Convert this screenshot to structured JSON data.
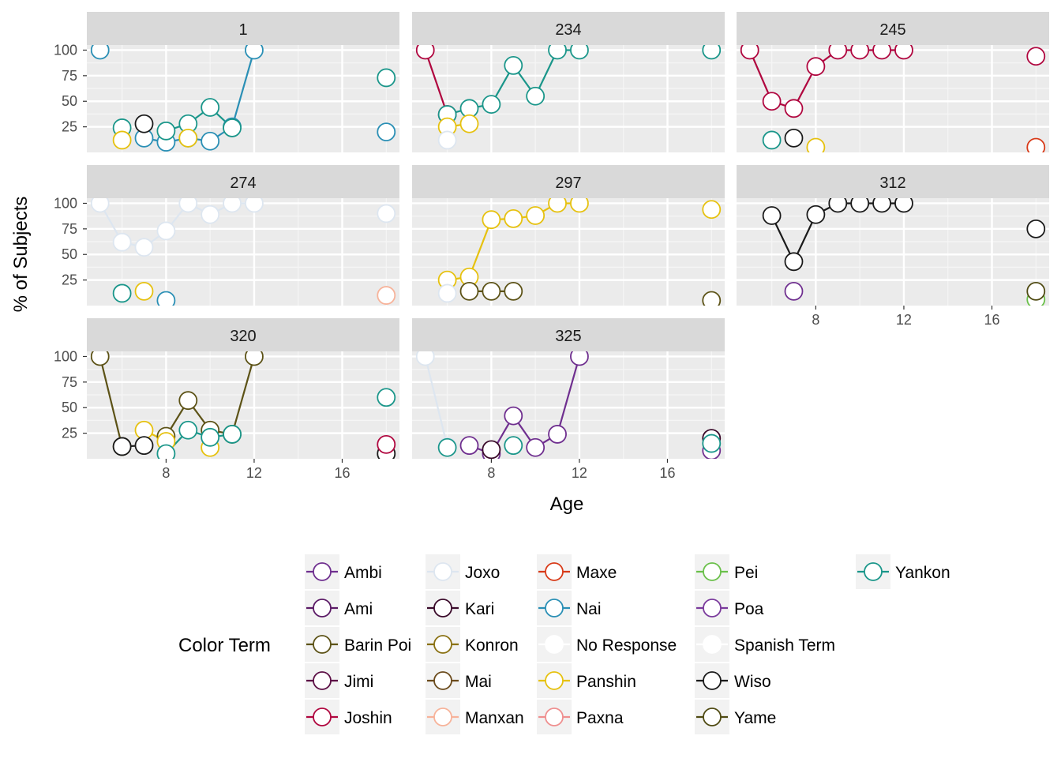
{
  "chart_data": {
    "type": "line",
    "facet_type": "wrap",
    "xlabel": "Age",
    "ylabel": "% of Subjects",
    "xlim": [
      4.4,
      18.6
    ],
    "ylim": [
      0,
      105
    ],
    "x_ticks": [
      8,
      12,
      16
    ],
    "y_ticks": [
      25,
      50,
      75,
      100
    ],
    "grid": true,
    "legend": {
      "title": "Color Term",
      "position": "bottom",
      "entries": [
        {
          "name": "Ambi",
          "color": "#6f2f8f"
        },
        {
          "name": "Ami",
          "color": "#5b1a66"
        },
        {
          "name": "Barin Poi",
          "color": "#5c5216"
        },
        {
          "name": "Jimi",
          "color": "#5c0f45"
        },
        {
          "name": "Joshin",
          "color": "#b0063f"
        },
        {
          "name": "Joxo",
          "color": "#dde6f0"
        },
        {
          "name": "Kari",
          "color": "#3a0a2a"
        },
        {
          "name": "Konron",
          "color": "#8a7112"
        },
        {
          "name": "Mai",
          "color": "#6b4b1c"
        },
        {
          "name": "Manxan",
          "color": "#f7b39a"
        },
        {
          "name": "Maxe",
          "color": "#d83a18"
        },
        {
          "name": "Nai",
          "color": "#2a8fb5"
        },
        {
          "name": "No Response",
          "color": "#ffffff"
        },
        {
          "name": "Panshin",
          "color": "#e6c10e"
        },
        {
          "name": "Paxna",
          "color": "#ef8f8f"
        },
        {
          "name": "Pei",
          "color": "#6ac04a"
        },
        {
          "name": "Poa",
          "color": "#7a3a9c"
        },
        {
          "name": "Spanish Term",
          "color": "#ffffff"
        },
        {
          "name": "Wiso",
          "color": "#1a1a1a"
        },
        {
          "name": "Yame",
          "color": "#4f4a12"
        },
        {
          "name": "Yankon",
          "color": "#1a968a"
        }
      ]
    },
    "panels": [
      {
        "label": "1",
        "series": [
          {
            "name": "Nai",
            "x": [
              5,
              7,
              8,
              9,
              10,
              11,
              12,
              18
            ],
            "y": [
              100,
              14,
              10,
              14,
              11,
              25,
              100,
              20
            ]
          },
          {
            "name": "Yankon",
            "x": [
              6,
              8,
              9,
              10,
              11,
              18
            ],
            "y": [
              24,
              21,
              28,
              44,
              24,
              73
            ]
          },
          {
            "name": "Panshin",
            "x": [
              6,
              9
            ],
            "y": [
              12,
              14
            ]
          },
          {
            "name": "Wiso",
            "x": [
              7
            ],
            "y": [
              28
            ]
          }
        ]
      },
      {
        "label": "234",
        "series": [
          {
            "name": "Joshin",
            "x": [
              5,
              6
            ],
            "y": [
              100,
              37
            ]
          },
          {
            "name": "Yankon",
            "x": [
              6,
              7,
              8,
              9,
              10,
              11,
              12,
              18
            ],
            "y": [
              37,
              43,
              47,
              85,
              55,
              100,
              100,
              100
            ]
          },
          {
            "name": "Panshin",
            "x": [
              6,
              7
            ],
            "y": [
              25,
              28
            ]
          },
          {
            "name": "Joxo",
            "x": [
              6
            ],
            "y": [
              12
            ]
          }
        ]
      },
      {
        "label": "245",
        "series": [
          {
            "name": "Joshin",
            "x": [
              5,
              6,
              7,
              8,
              9,
              10,
              11,
              12,
              18
            ],
            "y": [
              100,
              50,
              43,
              84,
              100,
              100,
              100,
              100,
              94
            ]
          },
          {
            "name": "Yankon",
            "x": [
              6
            ],
            "y": [
              12
            ]
          },
          {
            "name": "Wiso",
            "x": [
              7
            ],
            "y": [
              14
            ]
          },
          {
            "name": "Panshin",
            "x": [
              8
            ],
            "y": [
              5
            ]
          },
          {
            "name": "Maxe",
            "x": [
              18
            ],
            "y": [
              5
            ]
          }
        ]
      },
      {
        "label": "274",
        "series": [
          {
            "name": "Joxo",
            "x": [
              5,
              6,
              7,
              8,
              9,
              10,
              11,
              12,
              18
            ],
            "y": [
              100,
              62,
              57,
              73,
              100,
              89,
              100,
              100,
              90
            ]
          },
          {
            "name": "Yankon",
            "x": [
              6
            ],
            "y": [
              12
            ]
          },
          {
            "name": "Panshin",
            "x": [
              7
            ],
            "y": [
              14
            ]
          },
          {
            "name": "Nai",
            "x": [
              8
            ],
            "y": [
              5
            ]
          },
          {
            "name": "Manxan",
            "x": [
              18
            ],
            "y": [
              10
            ]
          }
        ]
      },
      {
        "label": "297",
        "series": [
          {
            "name": "Panshin",
            "x": [
              6,
              7,
              8,
              9,
              10,
              11,
              12,
              18
            ],
            "y": [
              25,
              28,
              84,
              85,
              88,
              100,
              100,
              94
            ]
          },
          {
            "name": "Joxo",
            "x": [
              6
            ],
            "y": [
              12
            ]
          },
          {
            "name": "Barin Poi",
            "x": [
              7,
              8,
              9,
              18
            ],
            "y": [
              14,
              14,
              14,
              5
            ]
          }
        ]
      },
      {
        "label": "312",
        "series": [
          {
            "name": "Wiso",
            "x": [
              6,
              7,
              8,
              9,
              10,
              11,
              12,
              18
            ],
            "y": [
              88,
              43,
              89,
              100,
              100,
              100,
              100,
              75
            ]
          },
          {
            "name": "Ambi",
            "x": [
              7
            ],
            "y": [
              14
            ]
          },
          {
            "name": "Pei",
            "x": [
              18
            ],
            "y": [
              6
            ]
          },
          {
            "name": "Yame",
            "x": [
              18
            ],
            "y": [
              14
            ]
          }
        ]
      },
      {
        "label": "320",
        "series": [
          {
            "name": "Barin Poi",
            "x": [
              5,
              6,
              8,
              9,
              10,
              11,
              12
            ],
            "y": [
              100,
              12,
              22,
              57,
              28,
              24,
              100
            ]
          },
          {
            "name": "Panshin",
            "x": [
              7,
              8,
              10
            ],
            "y": [
              28,
              17,
              11
            ]
          },
          {
            "name": "Wiso",
            "x": [
              6,
              7,
              18
            ],
            "y": [
              12,
              13,
              5
            ]
          },
          {
            "name": "Yankon",
            "x": [
              8,
              9,
              10,
              11,
              18
            ],
            "y": [
              5,
              28,
              21,
              24,
              60
            ]
          },
          {
            "name": "Joshin",
            "x": [
              18
            ],
            "y": [
              14
            ]
          }
        ]
      },
      {
        "label": "325",
        "series": [
          {
            "name": "Joxo",
            "x": [
              5,
              6
            ],
            "y": [
              100,
              12
            ]
          },
          {
            "name": "Ambi",
            "x": [
              7,
              8,
              9,
              10,
              11,
              12,
              18
            ],
            "y": [
              13,
              5,
              42,
              11,
              24,
              100,
              8
            ]
          },
          {
            "name": "Kari",
            "x": [
              8,
              18
            ],
            "y": [
              9,
              20
            ]
          },
          {
            "name": "Yankon",
            "x": [
              6,
              9,
              18
            ],
            "y": [
              11,
              13,
              15
            ]
          }
        ]
      }
    ]
  }
}
